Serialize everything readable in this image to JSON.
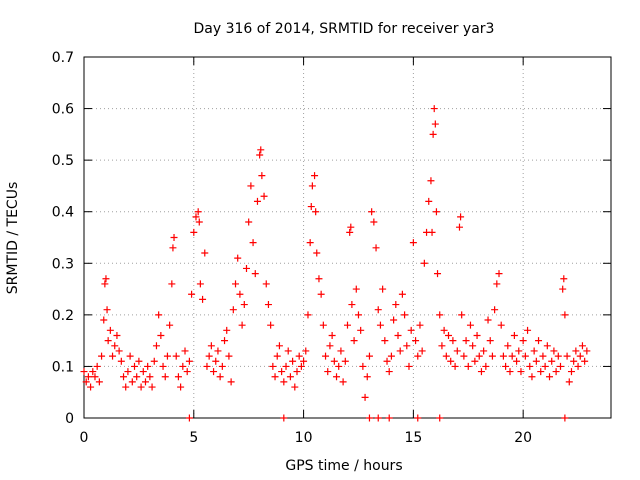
{
  "chart_data": {
    "type": "scatter",
    "title": "Day 316 of 2014, SRMTID for receiver yar3",
    "xlabel": "GPS time / hours",
    "ylabel": "SRMTID / TECUs",
    "xlim": [
      0,
      24
    ],
    "ylim": [
      0,
      0.7
    ],
    "xticks": [
      0,
      5,
      10,
      15,
      20
    ],
    "yticks": [
      0,
      0.1,
      0.2,
      0.3,
      0.4,
      0.5,
      0.6,
      0.7
    ],
    "xtick_labels": [
      "0",
      "5",
      "10",
      "15",
      "20"
    ],
    "ytick_labels": [
      "0",
      "0.1",
      "0.2",
      "0.3",
      "0.4",
      "0.5",
      "0.6",
      "0.7"
    ],
    "grid": true,
    "marker": "+",
    "color": "#ff0000",
    "series": [
      {
        "name": "SRMTID yar3",
        "points": [
          [
            0.0,
            0.09
          ],
          [
            0.1,
            0.07
          ],
          [
            0.2,
            0.08
          ],
          [
            0.3,
            0.06
          ],
          [
            0.4,
            0.09
          ],
          [
            0.5,
            0.08
          ],
          [
            0.6,
            0.1
          ],
          [
            0.7,
            0.07
          ],
          [
            0.8,
            0.12
          ],
          [
            0.9,
            0.19
          ],
          [
            0.95,
            0.26
          ],
          [
            1.0,
            0.27
          ],
          [
            1.05,
            0.21
          ],
          [
            1.1,
            0.15
          ],
          [
            1.2,
            0.17
          ],
          [
            1.3,
            0.12
          ],
          [
            1.4,
            0.14
          ],
          [
            1.5,
            0.16
          ],
          [
            1.6,
            0.13
          ],
          [
            1.7,
            0.11
          ],
          [
            1.8,
            0.08
          ],
          [
            1.9,
            0.06
          ],
          [
            2.0,
            0.09
          ],
          [
            2.1,
            0.12
          ],
          [
            2.2,
            0.07
          ],
          [
            2.3,
            0.1
          ],
          [
            2.4,
            0.08
          ],
          [
            2.5,
            0.11
          ],
          [
            2.6,
            0.06
          ],
          [
            2.7,
            0.09
          ],
          [
            2.8,
            0.07
          ],
          [
            2.9,
            0.1
          ],
          [
            3.0,
            0.08
          ],
          [
            3.1,
            0.06
          ],
          [
            3.2,
            0.11
          ],
          [
            3.3,
            0.14
          ],
          [
            3.4,
            0.2
          ],
          [
            3.5,
            0.16
          ],
          [
            3.6,
            0.1
          ],
          [
            3.7,
            0.08
          ],
          [
            3.8,
            0.12
          ],
          [
            3.9,
            0.18
          ],
          [
            4.0,
            0.26
          ],
          [
            4.05,
            0.33
          ],
          [
            4.1,
            0.35
          ],
          [
            4.2,
            0.12
          ],
          [
            4.3,
            0.08
          ],
          [
            4.4,
            0.06
          ],
          [
            4.5,
            0.1
          ],
          [
            4.6,
            0.13
          ],
          [
            4.7,
            0.09
          ],
          [
            4.8,
            0.11
          ],
          [
            4.9,
            0.24
          ],
          [
            5.0,
            0.36
          ],
          [
            5.1,
            0.39
          ],
          [
            5.2,
            0.4
          ],
          [
            5.25,
            0.38
          ],
          [
            5.3,
            0.26
          ],
          [
            5.4,
            0.23
          ],
          [
            5.5,
            0.32
          ],
          [
            5.6,
            0.1
          ],
          [
            5.7,
            0.12
          ],
          [
            5.8,
            0.14
          ],
          [
            5.9,
            0.09
          ],
          [
            6.0,
            0.11
          ],
          [
            6.1,
            0.13
          ],
          [
            6.2,
            0.08
          ],
          [
            6.3,
            0.1
          ],
          [
            6.4,
            0.15
          ],
          [
            6.5,
            0.17
          ],
          [
            6.6,
            0.12
          ],
          [
            6.7,
            0.07
          ],
          [
            6.8,
            0.21
          ],
          [
            6.9,
            0.26
          ],
          [
            7.0,
            0.31
          ],
          [
            7.1,
            0.24
          ],
          [
            7.2,
            0.18
          ],
          [
            7.3,
            0.22
          ],
          [
            7.4,
            0.29
          ],
          [
            7.5,
            0.38
          ],
          [
            7.6,
            0.45
          ],
          [
            7.7,
            0.34
          ],
          [
            7.8,
            0.28
          ],
          [
            7.9,
            0.42
          ],
          [
            8.0,
            0.51
          ],
          [
            8.05,
            0.52
          ],
          [
            8.1,
            0.47
          ],
          [
            8.2,
            0.43
          ],
          [
            8.3,
            0.26
          ],
          [
            8.4,
            0.22
          ],
          [
            8.5,
            0.18
          ],
          [
            8.6,
            0.1
          ],
          [
            8.7,
            0.08
          ],
          [
            8.8,
            0.12
          ],
          [
            8.9,
            0.14
          ],
          [
            9.0,
            0.09
          ],
          [
            9.1,
            0.07
          ],
          [
            9.2,
            0.1
          ],
          [
            9.3,
            0.13
          ],
          [
            9.4,
            0.08
          ],
          [
            9.5,
            0.11
          ],
          [
            9.6,
            0.06
          ],
          [
            9.7,
            0.09
          ],
          [
            9.8,
            0.12
          ],
          [
            9.9,
            0.1
          ],
          [
            10.0,
            0.11
          ],
          [
            10.1,
            0.13
          ],
          [
            10.2,
            0.2
          ],
          [
            10.3,
            0.34
          ],
          [
            10.35,
            0.41
          ],
          [
            10.4,
            0.45
          ],
          [
            10.5,
            0.47
          ],
          [
            10.55,
            0.4
          ],
          [
            10.6,
            0.32
          ],
          [
            10.7,
            0.27
          ],
          [
            10.8,
            0.24
          ],
          [
            10.9,
            0.18
          ],
          [
            11.0,
            0.12
          ],
          [
            11.1,
            0.09
          ],
          [
            11.2,
            0.14
          ],
          [
            11.3,
            0.16
          ],
          [
            11.4,
            0.11
          ],
          [
            11.5,
            0.08
          ],
          [
            11.6,
            0.1
          ],
          [
            11.7,
            0.13
          ],
          [
            11.8,
            0.07
          ],
          [
            11.9,
            0.11
          ],
          [
            12.0,
            0.18
          ],
          [
            12.1,
            0.36
          ],
          [
            12.15,
            0.37
          ],
          [
            12.2,
            0.22
          ],
          [
            12.3,
            0.15
          ],
          [
            12.4,
            0.25
          ],
          [
            12.5,
            0.2
          ],
          [
            12.6,
            0.17
          ],
          [
            12.7,
            0.1
          ],
          [
            12.8,
            0.04
          ],
          [
            12.9,
            0.08
          ],
          [
            13.0,
            0.12
          ],
          [
            13.1,
            0.4
          ],
          [
            13.2,
            0.38
          ],
          [
            13.3,
            0.33
          ],
          [
            13.4,
            0.21
          ],
          [
            13.5,
            0.18
          ],
          [
            13.6,
            0.25
          ],
          [
            13.7,
            0.15
          ],
          [
            13.8,
            0.11
          ],
          [
            13.9,
            0.09
          ],
          [
            14.0,
            0.12
          ],
          [
            14.1,
            0.19
          ],
          [
            14.2,
            0.22
          ],
          [
            14.3,
            0.16
          ],
          [
            14.4,
            0.13
          ],
          [
            14.5,
            0.24
          ],
          [
            14.6,
            0.2
          ],
          [
            14.7,
            0.14
          ],
          [
            14.8,
            0.1
          ],
          [
            14.9,
            0.17
          ],
          [
            15.0,
            0.34
          ],
          [
            15.1,
            0.15
          ],
          [
            15.2,
            0.12
          ],
          [
            15.3,
            0.18
          ],
          [
            15.4,
            0.13
          ],
          [
            15.5,
            0.3
          ],
          [
            15.6,
            0.36
          ],
          [
            15.7,
            0.42
          ],
          [
            15.8,
            0.46
          ],
          [
            15.85,
            0.36
          ],
          [
            15.9,
            0.55
          ],
          [
            15.95,
            0.6
          ],
          [
            16.0,
            0.57
          ],
          [
            16.05,
            0.4
          ],
          [
            16.1,
            0.28
          ],
          [
            16.2,
            0.2
          ],
          [
            16.3,
            0.14
          ],
          [
            16.4,
            0.17
          ],
          [
            16.5,
            0.12
          ],
          [
            16.6,
            0.16
          ],
          [
            16.7,
            0.11
          ],
          [
            16.8,
            0.15
          ],
          [
            16.9,
            0.1
          ],
          [
            17.0,
            0.13
          ],
          [
            17.1,
            0.37
          ],
          [
            17.15,
            0.39
          ],
          [
            17.2,
            0.2
          ],
          [
            17.3,
            0.12
          ],
          [
            17.4,
            0.15
          ],
          [
            17.5,
            0.1
          ],
          [
            17.6,
            0.18
          ],
          [
            17.7,
            0.14
          ],
          [
            17.8,
            0.11
          ],
          [
            17.9,
            0.16
          ],
          [
            18.0,
            0.12
          ],
          [
            18.1,
            0.09
          ],
          [
            18.2,
            0.13
          ],
          [
            18.3,
            0.1
          ],
          [
            18.4,
            0.19
          ],
          [
            18.5,
            0.15
          ],
          [
            18.6,
            0.12
          ],
          [
            18.7,
            0.21
          ],
          [
            18.8,
            0.26
          ],
          [
            18.9,
            0.28
          ],
          [
            19.0,
            0.18
          ],
          [
            19.1,
            0.12
          ],
          [
            19.2,
            0.1
          ],
          [
            19.3,
            0.14
          ],
          [
            19.4,
            0.09
          ],
          [
            19.5,
            0.12
          ],
          [
            19.6,
            0.16
          ],
          [
            19.7,
            0.11
          ],
          [
            19.8,
            0.13
          ],
          [
            19.9,
            0.09
          ],
          [
            20.0,
            0.15
          ],
          [
            20.1,
            0.12
          ],
          [
            20.2,
            0.17
          ],
          [
            20.3,
            0.1
          ],
          [
            20.4,
            0.08
          ],
          [
            20.5,
            0.13
          ],
          [
            20.6,
            0.11
          ],
          [
            20.7,
            0.15
          ],
          [
            20.8,
            0.09
          ],
          [
            20.9,
            0.12
          ],
          [
            21.0,
            0.1
          ],
          [
            21.1,
            0.14
          ],
          [
            21.2,
            0.08
          ],
          [
            21.3,
            0.11
          ],
          [
            21.4,
            0.13
          ],
          [
            21.5,
            0.09
          ],
          [
            21.6,
            0.12
          ],
          [
            21.7,
            0.1
          ],
          [
            21.8,
            0.25
          ],
          [
            21.85,
            0.27
          ],
          [
            21.9,
            0.2
          ],
          [
            22.0,
            0.12
          ],
          [
            22.1,
            0.07
          ],
          [
            22.2,
            0.09
          ],
          [
            22.3,
            0.11
          ],
          [
            22.4,
            0.13
          ],
          [
            22.5,
            0.1
          ],
          [
            22.6,
            0.12
          ],
          [
            22.7,
            0.14
          ],
          [
            22.8,
            0.11
          ],
          [
            22.9,
            0.13
          ],
          [
            4.8,
            0.0
          ],
          [
            9.1,
            0.0
          ],
          [
            13.0,
            0.0
          ],
          [
            13.4,
            0.0
          ],
          [
            13.9,
            0.0
          ],
          [
            15.2,
            0.0
          ],
          [
            16.2,
            0.0
          ],
          [
            21.9,
            0.0
          ]
        ]
      }
    ]
  }
}
